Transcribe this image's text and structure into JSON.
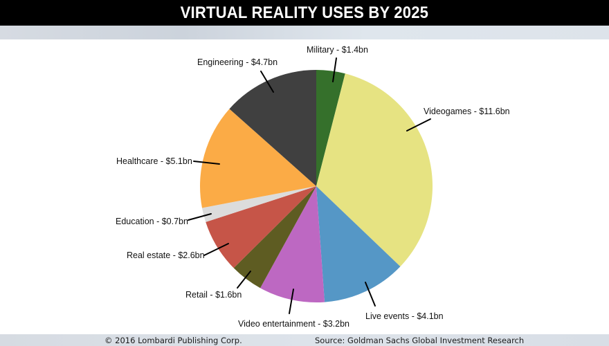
{
  "header": {
    "title": "VIRTUAL REALITY USES BY 2025"
  },
  "footer": {
    "copyright": "© 2016 Lombardi Publishing Corp.",
    "source": "Source: Goldman Sachs Global Investment Research"
  },
  "colors": {
    "title_bar": "#000000",
    "band": "#d8dee6",
    "military": "#35702b",
    "videogames": "#e6e382",
    "live_events": "#5597c6",
    "video_entertainment": "#bd68c2",
    "retail": "#5e5c22",
    "real_estate": "#c65548",
    "education": "#dcdcdc",
    "healthcare": "#fbab46",
    "engineering": "#404040"
  },
  "labels": {
    "military": "Military - $1.4bn",
    "videogames": "Videogames - $11.6bn",
    "live_events": "Live events - $4.1bn",
    "video_entertainment": "Video entertainment - $3.2bn",
    "retail": "Retail - $1.6bn",
    "real_estate": "Real estate - $2.6bn",
    "education": "Education - $0.7bn",
    "healthcare": "Healthcare - $5.1bn",
    "engineering": "Engineering - $4.7bn"
  },
  "chart_data": {
    "type": "pie",
    "title": "VIRTUAL REALITY USES BY 2025",
    "unit": "$bn",
    "start_angle": "12 o'clock, clockwise",
    "categories": [
      "Military",
      "Videogames",
      "Live events",
      "Video entertainment",
      "Retail",
      "Real estate",
      "Education",
      "Healthcare",
      "Engineering"
    ],
    "values": [
      1.4,
      11.6,
      4.1,
      3.2,
      1.6,
      2.6,
      0.7,
      5.1,
      4.7
    ],
    "total": 35.0,
    "slice_colors": [
      "#35702b",
      "#e6e382",
      "#5597c6",
      "#bd68c2",
      "#5e5c22",
      "#c65548",
      "#dcdcdc",
      "#fbab46",
      "#404040"
    ],
    "labels": [
      "Military - $1.4bn",
      "Videogames - $11.6bn",
      "Live events - $4.1bn",
      "Video entertainment - $3.2bn",
      "Retail - $1.6bn",
      "Real estate - $2.6bn",
      "Education - $0.7bn",
      "Healthcare - $5.1bn",
      "Engineering - $4.7bn"
    ],
    "legend": "none (leader-line labels)",
    "source": "Goldman Sachs Global Investment Research"
  }
}
